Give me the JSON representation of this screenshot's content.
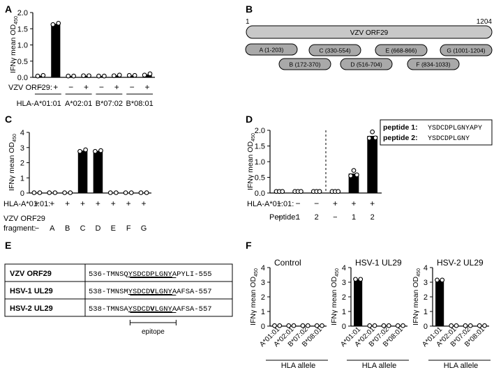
{
  "panel_letters": [
    "A",
    "B",
    "C",
    "D",
    "E",
    "F"
  ],
  "common": {
    "ylabel_main": "IFNγ mean OD",
    "ylabel_sub": "450",
    "bar_color": "#000000",
    "dot_color": "#ffffff"
  },
  "panelA": {
    "yticks": [
      "0.0",
      "0.5",
      "1.0",
      "1.5",
      "2.0"
    ],
    "row_label": "VZV ORF29:",
    "signs": [
      "−",
      "+",
      "−",
      "+",
      "−",
      "+",
      "−",
      "+"
    ],
    "groups": [
      "HLA-A*01:01",
      "A*02:01",
      "B*07:02",
      "B*08:01"
    ]
  },
  "panelB": {
    "protein": "VZV ORF29",
    "start": "1",
    "end": "1204",
    "fragments": [
      {
        "id": "A",
        "label": "A (1-203)"
      },
      {
        "id": "B",
        "label": "B (172-370)"
      },
      {
        "id": "C",
        "label": "C (330-554)"
      },
      {
        "id": "D",
        "label": "D (516-704)"
      },
      {
        "id": "E",
        "label": "E (668-866)"
      },
      {
        "id": "F",
        "label": "F (834-1033)"
      },
      {
        "id": "G",
        "label": "G (1001-1204)"
      }
    ]
  },
  "panelC": {
    "yticks": [
      "0",
      "1",
      "2",
      "3",
      "4"
    ],
    "row1_label": "HLA-A*01:01:",
    "row1": [
      "+",
      "+",
      "+",
      "+",
      "+",
      "+",
      "+",
      "+"
    ],
    "row2_label_a": "VZV ORF29",
    "row2_label_b": "fragment:",
    "row2": [
      "−",
      "A",
      "B",
      "C",
      "D",
      "E",
      "F",
      "G"
    ]
  },
  "panelD": {
    "yticks": [
      "0.0",
      "0.5",
      "1.0",
      "1.5",
      "2.0"
    ],
    "legend": [
      {
        "name": "peptide 1:",
        "seq": "YSDCDPLGNYAPY"
      },
      {
        "name": "peptide 2:",
        "seq": "YSDCDPLGNY"
      }
    ],
    "row1_label": "HLA-A*01:01:",
    "row1": [
      "−",
      "−",
      "−",
      "+",
      "+",
      "+"
    ],
    "row2_label": "Peptide:",
    "row2": [
      "−",
      "1",
      "2",
      "−",
      "1",
      "2"
    ]
  },
  "panelE": {
    "rows": [
      {
        "name": "VZV ORF29",
        "pre": "536-TMNSQ",
        "epi": "YSDCDPLGNY",
        "post": "APYLI-555",
        "bold": []
      },
      {
        "name": "HSV-1 UL29",
        "pre": "538-TMNSM",
        "epi": "YSDCDVLGNY",
        "post": "AAFSA-557",
        "bold": [
          5
        ]
      },
      {
        "name": "HSV-2 UL29",
        "pre": "538-TMNSA",
        "epi": "YSDCDVLGNY",
        "post": "AAFSA-557",
        "bold": [
          5
        ]
      }
    ],
    "epitope_label": "epitope"
  },
  "panelF": {
    "titles": [
      "Control",
      "HSV-1 UL29",
      "HSV-2 UL29"
    ],
    "yticks": [
      "0",
      "1",
      "2",
      "3",
      "4"
    ],
    "xlabel": "HLA allele"
  },
  "chart_data": [
    {
      "panel": "A",
      "type": "bar",
      "categories": [
        "A*01:01 −",
        "A*01:01 +",
        "A*02:01 −",
        "A*02:01 +",
        "B*07:02 −",
        "B*07:02 +",
        "B*08:01 −",
        "B*08:01 +"
      ],
      "values": [
        0.05,
        1.65,
        0.04,
        0.05,
        0.04,
        0.06,
        0.06,
        0.09
      ],
      "points": [
        [
          0.04,
          0.06
        ],
        [
          1.63,
          1.67
        ],
        [
          0.04,
          0.04
        ],
        [
          0.05,
          0.05
        ],
        [
          0.04,
          0.04
        ],
        [
          0.05,
          0.07
        ],
        [
          0.06,
          0.06
        ],
        [
          0.07,
          0.11
        ]
      ],
      "ylim": [
        0,
        2
      ],
      "ylabel": "IFNγ mean OD450"
    },
    {
      "panel": "C",
      "type": "bar",
      "categories": [
        "−",
        "A",
        "B",
        "C",
        "D",
        "E",
        "F",
        "G"
      ],
      "values": [
        0.02,
        0.02,
        0.02,
        2.8,
        2.78,
        0.02,
        0.02,
        0.02
      ],
      "points": [
        [
          0.02,
          0.02
        ],
        [
          0.02,
          0.02
        ],
        [
          0.02,
          0.02
        ],
        [
          2.75,
          2.85
        ],
        [
          2.75,
          2.8
        ],
        [
          0.02,
          0.02
        ],
        [
          0.02,
          0.02
        ],
        [
          0.02,
          0.02
        ]
      ],
      "ylim": [
        0,
        4
      ],
      "ylabel": "IFNγ mean OD450"
    },
    {
      "panel": "D",
      "type": "bar",
      "categories": [
        "− / −",
        "− / 1",
        "− / 2",
        "+ / −",
        "+ / 1",
        "+ / 2"
      ],
      "values": [
        0.05,
        0.05,
        0.05,
        0.05,
        0.62,
        1.82
      ],
      "points": [
        [
          0.05,
          0.05,
          0.05
        ],
        [
          0.05,
          0.05,
          0.05
        ],
        [
          0.05,
          0.05,
          0.05
        ],
        [
          0.05,
          0.05,
          0.05
        ],
        [
          0.55,
          0.72,
          0.58
        ],
        [
          1.75,
          1.95,
          1.76
        ]
      ],
      "ylim": [
        0,
        2
      ],
      "ylabel": "IFNγ mean OD450"
    },
    {
      "panel": "F",
      "type": "bar",
      "title": "Control",
      "categories": [
        "A*01:01",
        "A*02:01",
        "B*07:02",
        "B*08:01"
      ],
      "values": [
        0.03,
        0.03,
        0.03,
        0.03
      ],
      "points": [
        [
          0.03,
          0.03
        ],
        [
          0.03,
          0.03
        ],
        [
          0.03,
          0.03
        ],
        [
          0.03,
          0.03
        ]
      ],
      "ylim": [
        0,
        4
      ],
      "xlabel": "HLA allele",
      "ylabel": "IFNγ mean OD450"
    },
    {
      "panel": "F",
      "type": "bar",
      "title": "HSV-1 UL29",
      "categories": [
        "A*01:01",
        "A*02:01",
        "B*07:02",
        "B*08:01"
      ],
      "values": [
        3.2,
        0.03,
        0.03,
        0.03
      ],
      "points": [
        [
          3.2,
          3.2
        ],
        [
          0.03,
          0.03
        ],
        [
          0.03,
          0.03
        ],
        [
          0.03,
          0.03
        ]
      ],
      "ylim": [
        0,
        4
      ],
      "xlabel": "HLA allele",
      "ylabel": "IFNγ mean OD450"
    },
    {
      "panel": "F",
      "type": "bar",
      "title": "HSV-2 UL29",
      "categories": [
        "A*01:01",
        "A*02:01",
        "B*07:02",
        "B*08:01"
      ],
      "values": [
        3.15,
        0.03,
        0.03,
        0.03
      ],
      "points": [
        [
          3.15,
          3.15
        ],
        [
          0.03,
          0.03
        ],
        [
          0.03,
          0.03
        ],
        [
          0.03,
          0.03
        ]
      ],
      "ylim": [
        0,
        4
      ],
      "xlabel": "HLA allele",
      "ylabel": "IFNγ mean OD450"
    }
  ]
}
